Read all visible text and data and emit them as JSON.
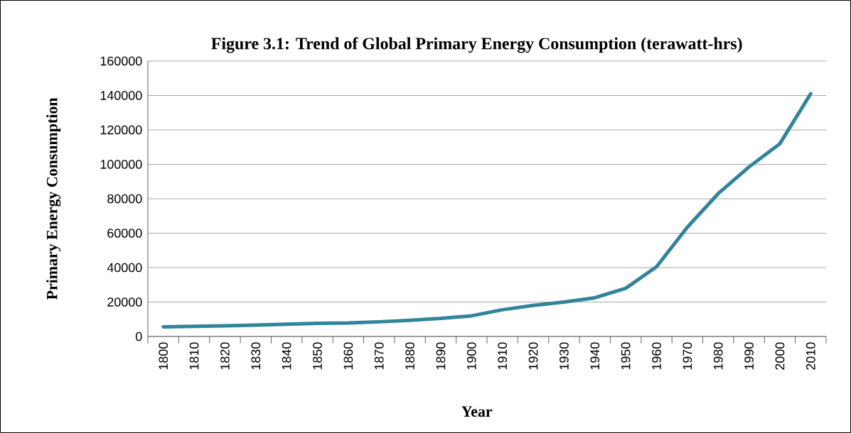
{
  "chart_data": {
    "type": "line",
    "title": "Figure 3.1: Trend of Global Primary Energy Consumption (terawatt-hrs)",
    "xlabel": "Year",
    "ylabel": "Primary Energy Consumption",
    "categories": [
      "1800",
      "1810",
      "1820",
      "1830",
      "1840",
      "1850",
      "1860",
      "1870",
      "1880",
      "1890",
      "1900",
      "1910",
      "1920",
      "1930",
      "1940",
      "1950",
      "1960",
      "1970",
      "1980",
      "1990",
      "2000",
      "2010"
    ],
    "series": [
      {
        "color": "#31849b",
        "values": [
          5600,
          5900,
          6200,
          6600,
          7100,
          7600,
          7800,
          8500,
          9400,
          10500,
          12000,
          15500,
          18000,
          20000,
          22500,
          28000,
          40500,
          63500,
          83000,
          98500,
          112000,
          141000
        ]
      }
    ],
    "ylim": [
      0,
      160000
    ],
    "yticks": [
      0,
      20000,
      40000,
      60000,
      80000,
      100000,
      120000,
      140000,
      160000
    ],
    "grid": "y",
    "marker": "none",
    "line_style": "solid"
  }
}
